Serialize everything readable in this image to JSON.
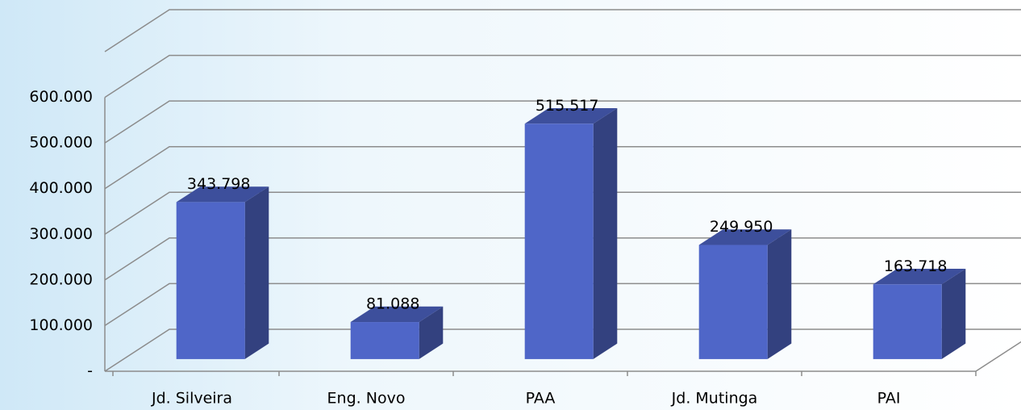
{
  "chart_data": {
    "type": "bar3d",
    "categories": [
      "Jd. Silveira",
      "Eng. Novo",
      "PAA",
      "Jd. Mutinga",
      "PAI"
    ],
    "values": [
      343798,
      81088,
      515517,
      249950,
      163718
    ],
    "value_labels": [
      "343.798",
      "81.088",
      "515.517",
      "249.950",
      "163.718"
    ],
    "color": "#4f66c8",
    "ylim": [
      0,
      700000
    ],
    "yticks": [
      {
        "value": 0,
        "label": "-"
      },
      {
        "value": 100000,
        "label": "100.000"
      },
      {
        "value": 200000,
        "label": "200.000"
      },
      {
        "value": 300000,
        "label": "300.000"
      },
      {
        "value": 400000,
        "label": "400.000"
      },
      {
        "value": 500000,
        "label": "500.000"
      },
      {
        "value": 600000,
        "label": "600.000"
      }
    ],
    "grid": true
  }
}
